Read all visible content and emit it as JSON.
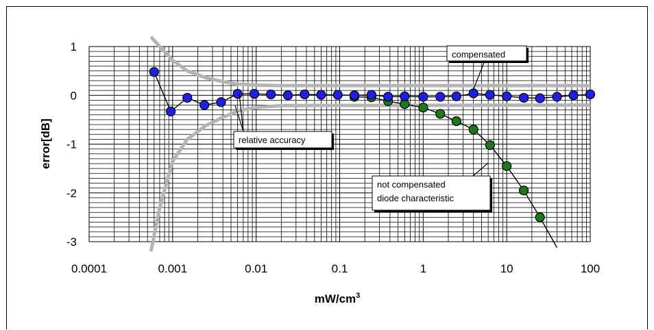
{
  "chart_data": {
    "type": "scatter",
    "xlabel": "mW/cm",
    "xlabel_superscript": "3",
    "ylabel": "error[dB]",
    "xscale": "log",
    "xlim": [
      0.0001,
      100
    ],
    "ylim": [
      -3,
      1
    ],
    "grid": true,
    "x_ticks": [
      "0.0001",
      "0.001",
      "0.01",
      "0.1",
      "1",
      "10",
      "100"
    ],
    "y_ticks": [
      "1",
      "0",
      "-1",
      "-2",
      "-3"
    ],
    "series": [
      {
        "name": "compensated",
        "color": "#1f1fe6",
        "x": [
          0.0006,
          0.00095,
          0.0015,
          0.0024,
          0.0038,
          0.006,
          0.0095,
          0.015,
          0.024,
          0.038,
          0.06,
          0.095,
          0.15,
          0.24,
          0.38,
          0.6,
          1.0,
          1.6,
          2.5,
          4.0,
          6.3,
          10,
          16,
          25,
          40,
          63,
          100
        ],
        "y": [
          0.48,
          -0.33,
          -0.05,
          -0.2,
          -0.14,
          0.03,
          0.03,
          0.02,
          0.0,
          0.02,
          0.01,
          0.01,
          0.0,
          0.01,
          -0.03,
          -0.02,
          -0.03,
          -0.03,
          -0.02,
          0.04,
          0.01,
          -0.02,
          -0.05,
          -0.06,
          -0.03,
          0.0,
          0.02
        ]
      },
      {
        "name": "not compensated diode characteristic",
        "color": "#1a7a1a",
        "x": [
          0.15,
          0.24,
          0.38,
          0.6,
          1.0,
          1.6,
          2.5,
          4.0,
          6.3,
          10,
          16,
          25
        ],
        "y": [
          -0.03,
          -0.04,
          -0.12,
          -0.18,
          -0.25,
          -0.38,
          -0.53,
          -0.7,
          -1.02,
          -1.45,
          -1.95,
          -2.5
        ],
        "line_extension": [
          [
            25,
            -2.5
          ],
          [
            40,
            -3.12
          ]
        ]
      }
    ],
    "accuracy_bands": {
      "name": "relative accuracy",
      "color": "#b4b4b4",
      "flat_level": 0.2,
      "upper": [
        [
          0.00055,
          1.2
        ],
        [
          0.0007,
          1.0
        ],
        [
          0.001,
          0.72
        ],
        [
          0.0015,
          0.5
        ],
        [
          0.0025,
          0.36
        ],
        [
          0.004,
          0.28
        ],
        [
          0.006,
          0.23
        ],
        [
          0.01,
          0.21
        ],
        [
          0.02,
          0.2
        ],
        [
          100,
          0.2
        ]
      ],
      "lower": [
        [
          0.00055,
          -3.2
        ],
        [
          0.0007,
          -2.3
        ],
        [
          0.001,
          -1.35
        ],
        [
          0.0015,
          -0.9
        ],
        [
          0.0025,
          -0.62
        ],
        [
          0.004,
          -0.45
        ],
        [
          0.006,
          -0.32
        ],
        [
          0.01,
          -0.25
        ],
        [
          0.02,
          -0.21
        ],
        [
          100,
          -0.2
        ]
      ]
    },
    "annotations": [
      {
        "id": "compensated",
        "lines": [
          "compensated"
        ]
      },
      {
        "id": "accuracy",
        "lines": [
          "relative accuracy"
        ]
      },
      {
        "id": "diode",
        "lines": [
          "not compensated",
          "diode characteristic"
        ]
      }
    ]
  }
}
